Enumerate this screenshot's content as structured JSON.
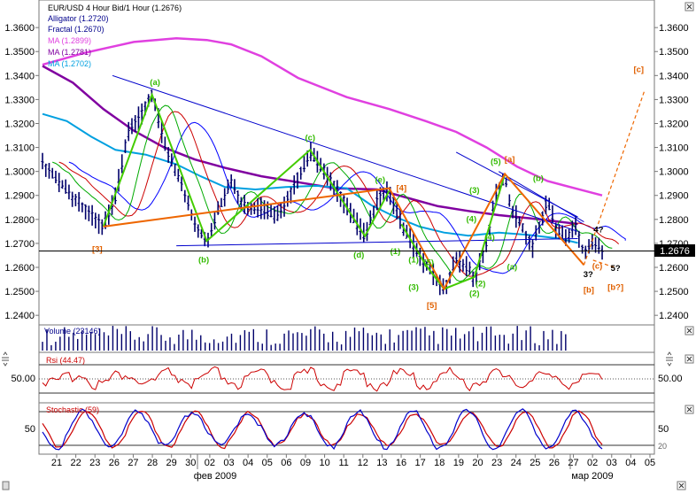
{
  "colors": {
    "price_bar": "#00006a",
    "alligator_jaw": "#0000ff",
    "alligator_teeth": "#cc0000",
    "alligator_lips": "#00aa00",
    "ma1": "#e040e0",
    "ma2": "#8000a0",
    "ma3": "#00a0e0",
    "trend": "#0000cc",
    "wave_green": "#44cc00",
    "wave_orange": "#ee6600",
    "label_green": "#33bb00",
    "label_orange": "#e06000",
    "rsi": "#cc0000",
    "stoch_k": "#0000cc",
    "stoch_d": "#cc0000",
    "volume": "#00006a"
  },
  "main_panel": {
    "legend": [
      {
        "text": "EUR/USD 4 Hour Bid/1 Hour (1.2676)",
        "color": "#000000"
      },
      {
        "text": "Alligator (1.2720)",
        "color": "#00008b"
      },
      {
        "text": "Fractal (1.2670)",
        "color": "#00008b"
      },
      {
        "text": "MA (1.2899)",
        "color": "#e040e0"
      },
      {
        "text": "MA (1.2781)",
        "color": "#8000a0"
      },
      {
        "text": "MA (1.2702)",
        "color": "#00a0e0"
      }
    ],
    "y_ticks": [
      "1.3600",
      "1.3500",
      "1.3400",
      "1.3300",
      "1.3200",
      "1.3100",
      "1.3000",
      "1.2900",
      "1.2800",
      "1.2700",
      "1.2600",
      "1.2500",
      "1.2400"
    ],
    "current_price": "1.2676",
    "close_icon": "×"
  },
  "chart_data": [
    {
      "type": "candlestick",
      "title": "EUR/USD 4 Hour Bid/1 Hour (1.2676)",
      "ylim": [
        1.236,
        1.3715
      ],
      "x_labels": [
        "21",
        "22",
        "23",
        "26",
        "27",
        "28",
        "29",
        "30",
        "02",
        "03",
        "04",
        "05",
        "06",
        "09",
        "10",
        "11",
        "12",
        "13",
        "16",
        "17",
        "18",
        "19",
        "20",
        "23",
        "24",
        "25",
        "26",
        "27",
        "02",
        "03",
        "04",
        "05"
      ],
      "month_labels": [
        "фев 2009",
        "мар 2009"
      ],
      "series": [
        {
          "name": "MA (1.2899)",
          "points": [
            [
              0.0,
              1.3445
            ],
            [
              0.07,
              1.3495
            ],
            [
              0.15,
              1.354
            ],
            [
              0.22,
              1.3555
            ],
            [
              0.27,
              1.3548
            ],
            [
              0.31,
              1.353
            ],
            [
              0.36,
              1.348
            ],
            [
              0.42,
              1.339
            ],
            [
              0.5,
              1.331
            ],
            [
              0.57,
              1.326
            ],
            [
              0.63,
              1.321
            ],
            [
              0.68,
              1.3165
            ],
            [
              0.73,
              1.31
            ],
            [
              0.78,
              1.302
            ],
            [
              0.83,
              1.296
            ],
            [
              0.89,
              1.292
            ],
            [
              0.92,
              1.29
            ]
          ]
        },
        {
          "name": "MA (1.2781)",
          "points": [
            [
              0.0,
              1.344
            ],
            [
              0.05,
              1.337
            ],
            [
              0.1,
              1.326
            ],
            [
              0.15,
              1.317
            ],
            [
              0.2,
              1.31
            ],
            [
              0.25,
              1.305
            ],
            [
              0.3,
              1.3015
            ],
            [
              0.36,
              1.298
            ],
            [
              0.42,
              1.2955
            ],
            [
              0.48,
              1.293
            ],
            [
              0.55,
              1.2925
            ],
            [
              0.6,
              1.289
            ],
            [
              0.65,
              1.2855
            ],
            [
              0.7,
              1.2835
            ],
            [
              0.75,
              1.2818
            ],
            [
              0.8,
              1.2805
            ],
            [
              0.85,
              1.279
            ],
            [
              0.88,
              1.2781
            ]
          ]
        },
        {
          "name": "MA (1.2702)",
          "points": [
            [
              0.0,
              1.324
            ],
            [
              0.04,
              1.321
            ],
            [
              0.08,
              1.3145
            ],
            [
              0.12,
              1.309
            ],
            [
              0.17,
              1.307
            ],
            [
              0.22,
              1.303
            ],
            [
              0.26,
              1.298
            ],
            [
              0.3,
              1.2935
            ],
            [
              0.35,
              1.2925
            ],
            [
              0.4,
              1.2935
            ],
            [
              0.45,
              1.294
            ],
            [
              0.5,
              1.293
            ],
            [
              0.54,
              1.286
            ],
            [
              0.58,
              1.281
            ],
            [
              0.62,
              1.277
            ],
            [
              0.66,
              1.2745
            ],
            [
              0.7,
              1.2732
            ],
            [
              0.75,
              1.2745
            ],
            [
              0.8,
              1.2735
            ],
            [
              0.85,
              1.272
            ],
            [
              0.88,
              1.2702
            ]
          ]
        }
      ],
      "wave_labels": [
        "[3]",
        "(a)",
        "(b)",
        "(c)",
        "(d)",
        "(e)",
        "[4]",
        "(1)",
        "(2)",
        "(3)",
        "(4)",
        "(5)",
        "[5]",
        "(1)",
        "(2)",
        "(3)",
        "(4)",
        "(5)",
        "[a]",
        "(a)",
        "(b)",
        "[b]",
        "(c)",
        "3?",
        "4?",
        "5?",
        "[b?]",
        "[c]"
      ]
    },
    {
      "type": "bar",
      "title": "Volume (23146)",
      "ylim": [
        0,
        1
      ]
    },
    {
      "type": "line",
      "title": "Rsi (44.47)",
      "y_ticks": [
        "50.00"
      ],
      "ylim": [
        20,
        80
      ]
    },
    {
      "type": "line",
      "title": "Stochastic (59)",
      "y_ticks": [
        "50",
        "20"
      ],
      "ylim": [
        0,
        100
      ]
    }
  ],
  "sub_panels": {
    "volume_title": "Volume (23146)",
    "rsi_title": "Rsi (44.47)",
    "rsi_tick": "50.00",
    "stoch_title": "Stochastic (59)",
    "stoch_tick": "50",
    "stoch_tick_low": "20"
  },
  "x_axis": {
    "labels": [
      "21",
      "22",
      "23",
      "26",
      "27",
      "28",
      "29",
      "30",
      "02",
      "03",
      "04",
      "05",
      "06",
      "09",
      "10",
      "11",
      "12",
      "13",
      "16",
      "17",
      "18",
      "19",
      "20",
      "23",
      "24",
      "25",
      "26",
      "27",
      "02",
      "03",
      "04",
      "05"
    ],
    "month_left": "фев 2009",
    "month_right": "мар 2009"
  }
}
